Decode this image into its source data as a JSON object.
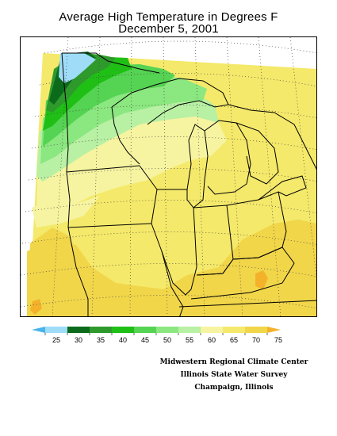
{
  "title": {
    "line1": "Average High Temperature in Degrees F",
    "line2": "December 5, 2001"
  },
  "legend": {
    "ticks": [
      "25",
      "30",
      "35",
      "40",
      "45",
      "50",
      "55",
      "60",
      "65",
      "70",
      "75"
    ],
    "bins": [
      {
        "label": "<25",
        "color": "#4ab3ec"
      },
      {
        "label": "25-30",
        "color": "#9fdcf8"
      },
      {
        "label": "30-35",
        "color": "#0b6b1b"
      },
      {
        "label": "35-40",
        "color": "#2f9a2c"
      },
      {
        "label": "40-45",
        "color": "#1fbf16"
      },
      {
        "label": "45-50",
        "color": "#55d352"
      },
      {
        "label": "50-55",
        "color": "#8be77f"
      },
      {
        "label": "55-60",
        "color": "#b8f0a4"
      },
      {
        "label": "60-65",
        "color": "#f6f4a0"
      },
      {
        "label": "65-70",
        "color": "#f4e96a"
      },
      {
        "label": "70-75",
        "color": "#f1d64a"
      },
      {
        "label": ">75",
        "color": "#f3b22a"
      }
    ]
  },
  "credits": {
    "line1": "Midwestern Regional Climate Center",
    "line2": "Illinois State Water Survey",
    "line3": "Champaign, Illinois"
  }
}
